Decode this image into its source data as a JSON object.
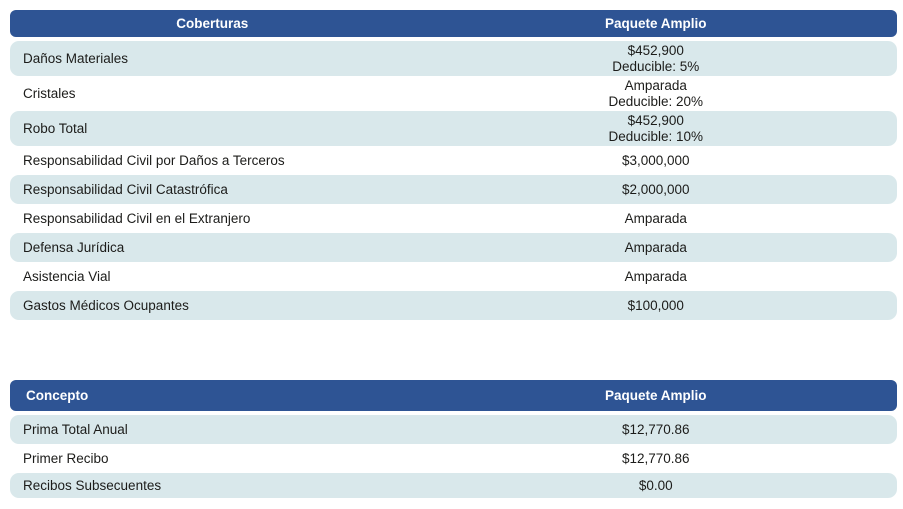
{
  "colors": {
    "header_bg": "#2E5494",
    "header_text": "#FFFFFF",
    "row_alt_bg": "#D9E8EB",
    "row_text": "#1C1C1A",
    "page_bg": "#FFFFFF"
  },
  "coverages_table": {
    "header": {
      "label_col": "Coberturas",
      "value_col": "Paquete Amplio"
    },
    "rows": [
      {
        "label": "Daños Materiales",
        "value": "$452,900",
        "detail": "Deducible: 5%"
      },
      {
        "label": "Cristales",
        "value": "Amparada",
        "detail": "Deducible: 20%"
      },
      {
        "label": "Robo Total",
        "value": "$452,900",
        "detail": "Deducible: 10%"
      },
      {
        "label": "Responsabilidad Civil por Daños a Terceros",
        "value": "$3,000,000"
      },
      {
        "label": "Responsabilidad Civil Catastrófica",
        "value": "$2,000,000"
      },
      {
        "label": "Responsabilidad Civil en el Extranjero",
        "value": "Amparada"
      },
      {
        "label": "Defensa Jurídica",
        "value": "Amparada"
      },
      {
        "label": "Asistencia Vial",
        "value": "Amparada"
      },
      {
        "label": "Gastos Médicos Ocupantes",
        "value": "$100,000"
      }
    ]
  },
  "pricing_table": {
    "header": {
      "label_col": "Concepto",
      "value_col": "Paquete Amplio"
    },
    "rows": [
      {
        "label": "Prima Total Anual",
        "value": "$12,770.86"
      },
      {
        "label": "Primer Recibo",
        "value": "$12,770.86"
      },
      {
        "label": "Recibos Subsecuentes",
        "value": "$0.00"
      }
    ]
  }
}
